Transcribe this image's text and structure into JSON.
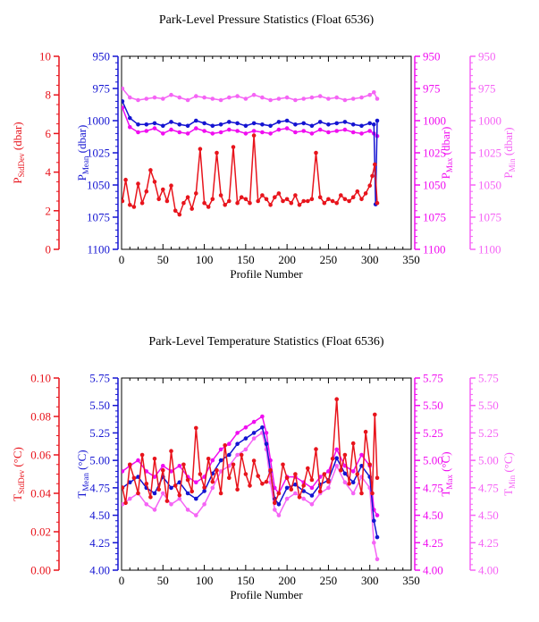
{
  "colors": {
    "stddev": "#e8141c",
    "mean": "#1414d2",
    "max": "#f00ef0",
    "min": "#f564f5",
    "axis": "#000000"
  },
  "chart_data": [
    {
      "type": "line",
      "title": "Park-Level Pressure Statistics (Float 6536)",
      "xlabel": "Profile Number",
      "xlim": [
        0,
        350
      ],
      "xticks": [
        "0",
        "50",
        "100",
        "150",
        "200",
        "250",
        "300",
        "350"
      ],
      "axes": [
        {
          "key": "stddev",
          "label_main": "P",
          "label_sub": "StdDev",
          "label_unit": " (dbar)",
          "ylim": [
            0,
            10
          ],
          "reversed": false,
          "ticks": [
            "0",
            "2",
            "4",
            "6",
            "8",
            "10"
          ]
        },
        {
          "key": "mean",
          "label_main": "P",
          "label_sub": "Mean",
          "label_unit": " (dbar)",
          "ylim": [
            1100,
            950
          ],
          "reversed": true,
          "ticks": [
            "1100",
            "1075",
            "1050",
            "1025",
            "1000",
            "975",
            "950"
          ]
        },
        {
          "key": "max",
          "label_main": "P",
          "label_sub": "Max",
          "label_unit": " (dbar)",
          "ylim": [
            1100,
            950
          ],
          "reversed": true,
          "ticks": [
            "1100",
            "1075",
            "1050",
            "1025",
            "1000",
            "975",
            "950"
          ]
        },
        {
          "key": "min",
          "label_main": "P",
          "label_sub": "Min",
          "label_unit": " (dbar)",
          "ylim": [
            1100,
            950
          ],
          "reversed": true,
          "ticks": [
            "1100",
            "1075",
            "1050",
            "1025",
            "1000",
            "975",
            "950"
          ]
        }
      ],
      "series": [
        {
          "axis": "min",
          "x": [
            1,
            10,
            20,
            30,
            40,
            50,
            60,
            70,
            80,
            90,
            100,
            110,
            120,
            130,
            140,
            150,
            160,
            170,
            180,
            190,
            200,
            210,
            220,
            230,
            240,
            250,
            260,
            270,
            280,
            290,
            300,
            305,
            309
          ],
          "values": [
            975,
            982,
            984,
            983,
            982,
            983,
            980,
            982,
            984,
            981,
            982,
            983,
            984,
            982,
            981,
            983,
            980,
            982,
            984,
            983,
            982,
            984,
            983,
            982,
            981,
            983,
            982,
            984,
            983,
            982,
            980,
            978,
            983
          ]
        },
        {
          "axis": "max",
          "x": [
            1,
            10,
            20,
            30,
            40,
            50,
            60,
            70,
            80,
            90,
            100,
            110,
            120,
            130,
            140,
            150,
            160,
            170,
            180,
            190,
            200,
            210,
            220,
            230,
            240,
            250,
            260,
            270,
            280,
            290,
            300,
            305,
            309
          ],
          "values": [
            990,
            1005,
            1009,
            1008,
            1006,
            1010,
            1007,
            1009,
            1010,
            1006,
            1008,
            1010,
            1009,
            1007,
            1008,
            1010,
            1008,
            1009,
            1010,
            1007,
            1006,
            1009,
            1008,
            1010,
            1007,
            1009,
            1008,
            1007,
            1009,
            1010,
            1008,
            1010,
            1012
          ]
        },
        {
          "axis": "mean",
          "x": [
            1,
            10,
            20,
            30,
            40,
            50,
            60,
            70,
            80,
            90,
            100,
            110,
            120,
            130,
            140,
            150,
            160,
            170,
            180,
            190,
            200,
            210,
            220,
            230,
            240,
            250,
            260,
            270,
            280,
            290,
            300,
            305,
            307,
            309
          ],
          "values": [
            985,
            998,
            1003,
            1003,
            1002,
            1004,
            1001,
            1003,
            1004,
            1000,
            1002,
            1004,
            1003,
            1001,
            1002,
            1004,
            1002,
            1003,
            1004,
            1001,
            1000,
            1003,
            1002,
            1004,
            1001,
            1003,
            1002,
            1001,
            1003,
            1004,
            1002,
            1003,
            1065,
            1000
          ]
        },
        {
          "axis": "stddev",
          "x": [
            1,
            5,
            10,
            15,
            20,
            25,
            30,
            35,
            40,
            45,
            50,
            55,
            60,
            65,
            70,
            75,
            80,
            85,
            90,
            95,
            100,
            105,
            110,
            115,
            120,
            125,
            130,
            135,
            140,
            145,
            150,
            155,
            160,
            165,
            170,
            175,
            180,
            185,
            190,
            195,
            200,
            205,
            210,
            215,
            220,
            225,
            230,
            235,
            240,
            245,
            250,
            255,
            260,
            265,
            270,
            275,
            280,
            285,
            290,
            295,
            300,
            303,
            306,
            309
          ],
          "values": [
            2.5,
            3.6,
            2.3,
            2.2,
            3.4,
            2.4,
            3.0,
            4.1,
            3.5,
            2.6,
            3.1,
            2.5,
            3.3,
            2.0,
            1.8,
            2.4,
            2.7,
            2.1,
            2.9,
            5.2,
            2.4,
            2.2,
            2.6,
            5.0,
            2.8,
            2.3,
            2.5,
            5.3,
            2.4,
            2.7,
            2.6,
            2.4,
            5.9,
            2.5,
            2.8,
            2.6,
            2.3,
            2.7,
            2.9,
            2.5,
            2.6,
            2.4,
            2.8,
            2.3,
            2.5,
            2.5,
            2.6,
            5.0,
            2.7,
            2.4,
            2.6,
            2.5,
            2.4,
            2.8,
            2.6,
            2.5,
            2.7,
            3.0,
            2.6,
            2.9,
            3.3,
            3.8,
            4.4,
            2.4
          ]
        }
      ]
    },
    {
      "type": "line",
      "title": "Park-Level Temperature Statistics (Float 6536)",
      "xlabel": "Profile Number",
      "xlim": [
        0,
        350
      ],
      "xticks": [
        "0",
        "50",
        "100",
        "150",
        "200",
        "250",
        "300",
        "350"
      ],
      "axes": [
        {
          "key": "stddev",
          "label_main": "T",
          "label_sub": "StdDev",
          "label_unit": " (°C)",
          "ylim": [
            0,
            0.1
          ],
          "reversed": false,
          "ticks": [
            "0.00",
            "0.02",
            "0.04",
            "0.06",
            "0.08",
            "0.10"
          ]
        },
        {
          "key": "mean",
          "label_main": "T",
          "label_sub": "Mean",
          "label_unit": " (°C)",
          "ylim": [
            4.0,
            5.75
          ],
          "reversed": false,
          "ticks": [
            "4.00",
            "4.25",
            "4.50",
            "4.75",
            "5.00",
            "5.25",
            "5.50",
            "5.75"
          ]
        },
        {
          "key": "max",
          "label_main": "T",
          "label_sub": "Max",
          "label_unit": " (°C)",
          "ylim": [
            4.0,
            5.75
          ],
          "reversed": false,
          "ticks": [
            "4.00",
            "4.25",
            "4.50",
            "4.75",
            "5.00",
            "5.25",
            "5.50",
            "5.75"
          ]
        },
        {
          "key": "min",
          "label_main": "T",
          "label_sub": "Min",
          "label_unit": " (°C)",
          "ylim": [
            4.0,
            5.75
          ],
          "reversed": false,
          "ticks": [
            "4.00",
            "4.25",
            "4.50",
            "4.75",
            "5.00",
            "5.25",
            "5.50",
            "5.75"
          ]
        }
      ],
      "series": [
        {
          "axis": "min",
          "x": [
            1,
            10,
            20,
            30,
            40,
            50,
            60,
            70,
            80,
            90,
            100,
            110,
            120,
            130,
            140,
            150,
            160,
            170,
            175,
            180,
            185,
            190,
            200,
            210,
            220,
            230,
            240,
            250,
            260,
            270,
            280,
            290,
            300,
            305,
            309
          ],
          "values": [
            4.6,
            4.65,
            4.7,
            4.6,
            4.55,
            4.7,
            4.6,
            4.65,
            4.55,
            4.5,
            4.6,
            4.75,
            4.9,
            4.95,
            5.05,
            5.1,
            5.2,
            5.25,
            5.1,
            4.8,
            4.55,
            4.5,
            4.65,
            4.7,
            4.65,
            4.6,
            4.7,
            4.75,
            4.95,
            4.8,
            4.7,
            4.85,
            4.75,
            4.25,
            4.1
          ]
        },
        {
          "axis": "max",
          "x": [
            1,
            10,
            20,
            30,
            40,
            50,
            60,
            70,
            80,
            90,
            100,
            110,
            120,
            130,
            140,
            150,
            160,
            170,
            175,
            180,
            185,
            190,
            200,
            210,
            220,
            230,
            240,
            250,
            260,
            270,
            280,
            290,
            300,
            305,
            309
          ],
          "values": [
            4.9,
            4.95,
            5.0,
            4.9,
            4.85,
            4.95,
            4.9,
            4.95,
            4.85,
            4.8,
            4.85,
            5.0,
            5.1,
            5.15,
            5.25,
            5.3,
            5.35,
            5.4,
            5.25,
            5.0,
            4.75,
            4.7,
            4.85,
            4.85,
            4.8,
            4.75,
            4.85,
            4.9,
            5.1,
            4.95,
            4.9,
            5.05,
            4.95,
            4.55,
            4.5
          ]
        },
        {
          "axis": "mean",
          "x": [
            1,
            10,
            20,
            30,
            40,
            50,
            60,
            70,
            80,
            90,
            100,
            110,
            120,
            130,
            140,
            150,
            160,
            170,
            175,
            180,
            185,
            190,
            200,
            210,
            220,
            230,
            240,
            250,
            260,
            270,
            280,
            290,
            300,
            305,
            309
          ],
          "values": [
            4.75,
            4.8,
            4.85,
            4.75,
            4.7,
            4.85,
            4.75,
            4.8,
            4.7,
            4.65,
            4.72,
            4.88,
            5.0,
            5.05,
            5.15,
            5.2,
            5.25,
            5.3,
            5.15,
            4.9,
            4.65,
            4.6,
            4.75,
            4.78,
            4.72,
            4.68,
            4.78,
            4.82,
            5.02,
            4.88,
            4.8,
            4.95,
            4.85,
            4.45,
            4.3
          ]
        },
        {
          "axis": "stddev",
          "x": [
            1,
            5,
            10,
            15,
            20,
            25,
            30,
            35,
            40,
            45,
            50,
            55,
            60,
            65,
            70,
            75,
            80,
            85,
            90,
            95,
            100,
            105,
            110,
            115,
            120,
            125,
            130,
            135,
            140,
            145,
            150,
            155,
            160,
            165,
            170,
            175,
            180,
            185,
            190,
            195,
            200,
            205,
            210,
            215,
            220,
            225,
            230,
            235,
            240,
            245,
            250,
            255,
            260,
            265,
            270,
            275,
            280,
            285,
            290,
            295,
            300,
            303,
            306,
            309
          ],
          "values": [
            0.043,
            0.035,
            0.055,
            0.048,
            0.04,
            0.06,
            0.045,
            0.038,
            0.058,
            0.042,
            0.052,
            0.036,
            0.062,
            0.044,
            0.039,
            0.055,
            0.047,
            0.041,
            0.074,
            0.05,
            0.043,
            0.058,
            0.046,
            0.052,
            0.04,
            0.065,
            0.048,
            0.055,
            0.042,
            0.06,
            0.05,
            0.044,
            0.057,
            0.049,
            0.045,
            0.046,
            0.052,
            0.035,
            0.04,
            0.055,
            0.048,
            0.042,
            0.05,
            0.038,
            0.044,
            0.053,
            0.047,
            0.063,
            0.041,
            0.05,
            0.046,
            0.058,
            0.089,
            0.052,
            0.06,
            0.045,
            0.066,
            0.05,
            0.04,
            0.072,
            0.055,
            0.04,
            0.081,
            0.048
          ]
        }
      ]
    }
  ]
}
